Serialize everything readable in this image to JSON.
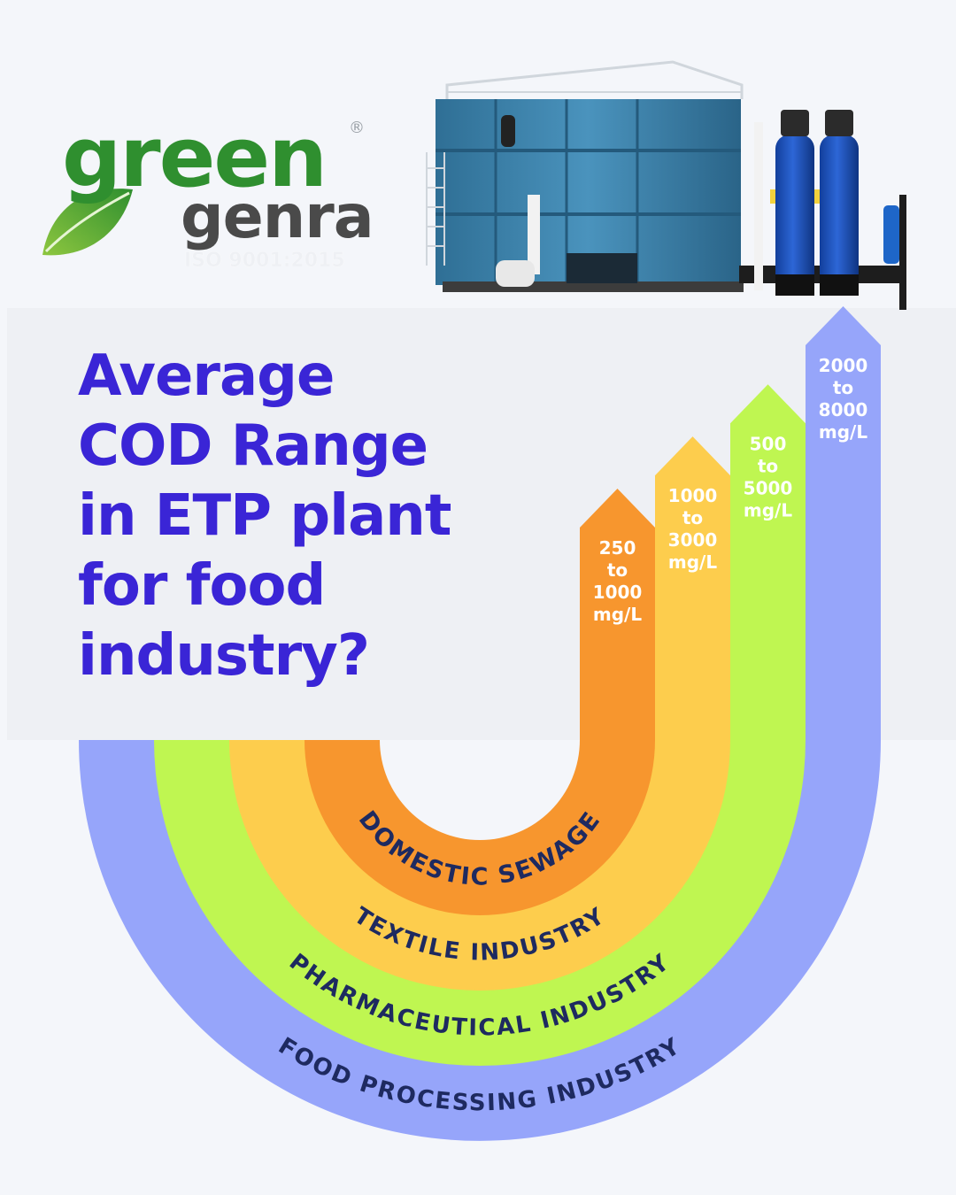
{
  "brand": {
    "name_line1": "green",
    "name_line2": "genra",
    "registered": "®",
    "certification": "ISO 9001:2015"
  },
  "colors": {
    "background": "#f4f6fa",
    "title": "#3a25d6",
    "band_label": "#1e2a60",
    "bar_label": "#ffffff",
    "logo_green": "#2f8f2f",
    "logo_gray": "#4a4a4a"
  },
  "headline": {
    "lines": [
      "Average",
      "COD Range",
      "in ETP plant",
      "for food",
      "industry?"
    ]
  },
  "product_image": {
    "icon": "etp-plant-illustration"
  },
  "chart_data": {
    "type": "bar",
    "title": "Average COD Range in ETP plant for food industry?",
    "unit": "mg/L",
    "categories": [
      "Domestic Sewage",
      "Textile Industry",
      "Pharmaceutical Industry",
      "Food Processing Industry"
    ],
    "category_labels": [
      "DOMESTIC SEWAGE",
      "TEXTILE INDUSTRY",
      "PHARMACEUTICAL INDUSTRY",
      "FOOD PROCESSING INDUSTRY"
    ],
    "ranges": [
      [
        250,
        1000
      ],
      [
        1000,
        3000
      ],
      [
        500,
        5000
      ],
      [
        2000,
        8000
      ]
    ],
    "bar_labels": [
      [
        "250",
        "to",
        "1000",
        "mg/L"
      ],
      [
        "1000",
        "to",
        "3000",
        "mg/L"
      ],
      [
        "500",
        "to",
        "5000",
        "mg/L"
      ],
      [
        "2000",
        "to",
        "8000",
        "mg/L"
      ]
    ],
    "colors": [
      "#f7962e",
      "#fdcd4d",
      "#bff651",
      "#96a5fa"
    ]
  }
}
